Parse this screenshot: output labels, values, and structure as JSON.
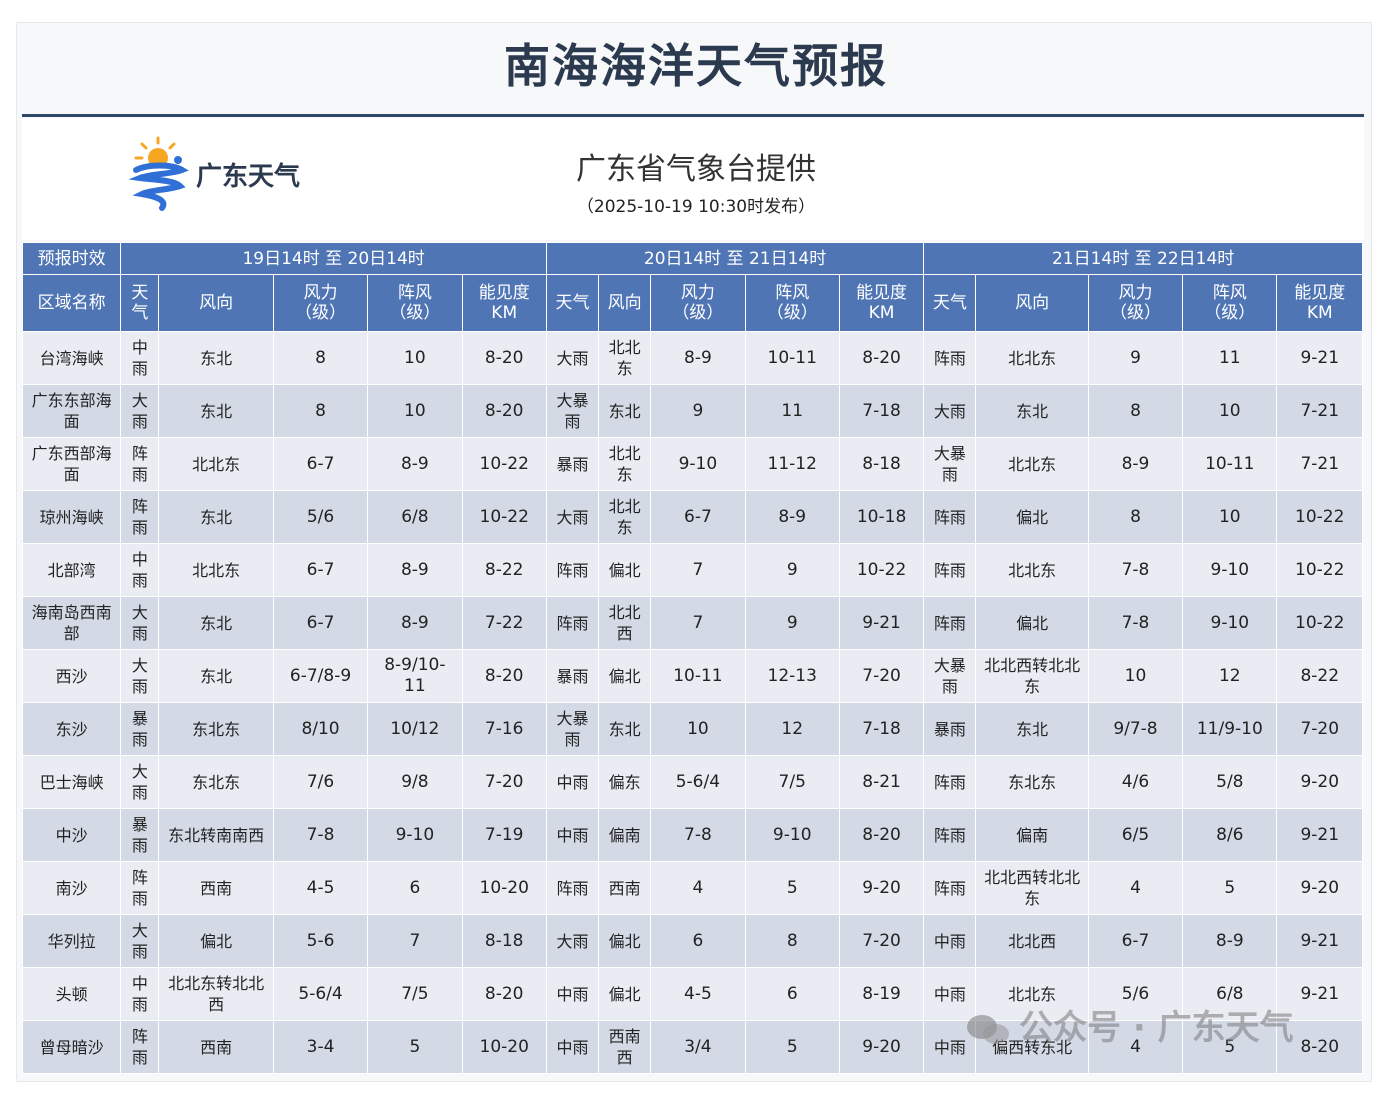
{
  "title": "南海海洋天气预报",
  "logo_text": "广东天气",
  "provider": "广东省气象台提供",
  "release": "（2025-10-19  10:30时发布）",
  "watermark": "公众号 · 广东天气",
  "table": {
    "period_label": "预报时效",
    "region_label": "区域名称",
    "periods": [
      "19日14时 至 20日14时",
      "20日14时 至 21日14时",
      "21日14时 至 22日14时"
    ],
    "columns": [
      "天气",
      "风向",
      "风力\n（级）",
      "阵风\n（级）",
      "能见度\nKM"
    ],
    "first_weather_header": "天\n气",
    "rows": [
      {
        "region": "台湾海峡",
        "p1": [
          "中\n雨",
          "东北",
          "8",
          "10",
          "8-20"
        ],
        "p2": [
          "大雨",
          "北北\n东",
          "8-9",
          "10-11",
          "8-20"
        ],
        "p3": [
          "阵雨",
          "北北东",
          "9",
          "11",
          "9-21"
        ]
      },
      {
        "region": "广东东部海\n面",
        "p1": [
          "大\n雨",
          "东北",
          "8",
          "10",
          "8-20"
        ],
        "p2": [
          "大暴\n雨",
          "东北",
          "9",
          "11",
          "7-18"
        ],
        "p3": [
          "大雨",
          "东北",
          "8",
          "10",
          "7-21"
        ]
      },
      {
        "region": "广东西部海\n面",
        "p1": [
          "阵\n雨",
          "北北东",
          "6-7",
          "8-9",
          "10-22"
        ],
        "p2": [
          "暴雨",
          "北北\n东",
          "9-10",
          "11-12",
          "8-18"
        ],
        "p3": [
          "大暴\n雨",
          "北北东",
          "8-9",
          "10-11",
          "7-21"
        ]
      },
      {
        "region": "琼州海峡",
        "p1": [
          "阵\n雨",
          "东北",
          "5/6",
          "6/8",
          "10-22"
        ],
        "p2": [
          "大雨",
          "北北\n东",
          "6-7",
          "8-9",
          "10-18"
        ],
        "p3": [
          "阵雨",
          "偏北",
          "8",
          "10",
          "10-22"
        ]
      },
      {
        "region": "北部湾",
        "p1": [
          "中\n雨",
          "北北东",
          "6-7",
          "8-9",
          "8-22"
        ],
        "p2": [
          "阵雨",
          "偏北",
          "7",
          "9",
          "10-22"
        ],
        "p3": [
          "阵雨",
          "北北东",
          "7-8",
          "9-10",
          "10-22"
        ]
      },
      {
        "region": "海南岛西南\n部",
        "p1": [
          "大\n雨",
          "东北",
          "6-7",
          "8-9",
          "7-22"
        ],
        "p2": [
          "阵雨",
          "北北\n西",
          "7",
          "9",
          "9-21"
        ],
        "p3": [
          "阵雨",
          "偏北",
          "7-8",
          "9-10",
          "10-22"
        ]
      },
      {
        "region": "西沙",
        "p1": [
          "大\n雨",
          "东北",
          "6-7/8-9",
          "8-9/10-\n11",
          "8-20"
        ],
        "p2": [
          "暴雨",
          "偏北",
          "10-11",
          "12-13",
          "7-20"
        ],
        "p3": [
          "大暴\n雨",
          "北北西转北北\n东",
          "10",
          "12",
          "8-22"
        ]
      },
      {
        "region": "东沙",
        "p1": [
          "暴\n雨",
          "东北东",
          "8/10",
          "10/12",
          "7-16"
        ],
        "p2": [
          "大暴\n雨",
          "东北",
          "10",
          "12",
          "7-18"
        ],
        "p3": [
          "暴雨",
          "东北",
          "9/7-8",
          "11/9-10",
          "7-20"
        ]
      },
      {
        "region": "巴士海峡",
        "p1": [
          "大\n雨",
          "东北东",
          "7/6",
          "9/8",
          "7-20"
        ],
        "p2": [
          "中雨",
          "偏东",
          "5-6/4",
          "7/5",
          "8-21"
        ],
        "p3": [
          "阵雨",
          "东北东",
          "4/6",
          "5/8",
          "9-20"
        ]
      },
      {
        "region": "中沙",
        "p1": [
          "暴\n雨",
          "东北转南南西",
          "7-8",
          "9-10",
          "7-19"
        ],
        "p2": [
          "中雨",
          "偏南",
          "7-8",
          "9-10",
          "8-20"
        ],
        "p3": [
          "阵雨",
          "偏南",
          "6/5",
          "8/6",
          "9-21"
        ]
      },
      {
        "region": "南沙",
        "p1": [
          "阵\n雨",
          "西南",
          "4-5",
          "6",
          "10-20"
        ],
        "p2": [
          "阵雨",
          "西南",
          "4",
          "5",
          "9-20"
        ],
        "p3": [
          "阵雨",
          "北北西转北北\n东",
          "4",
          "5",
          "9-20"
        ]
      },
      {
        "region": "华列拉",
        "p1": [
          "大\n雨",
          "偏北",
          "5-6",
          "7",
          "8-18"
        ],
        "p2": [
          "大雨",
          "偏北",
          "6",
          "8",
          "7-20"
        ],
        "p3": [
          "中雨",
          "北北西",
          "6-7",
          "8-9",
          "9-21"
        ]
      },
      {
        "region": "头顿",
        "p1": [
          "中\n雨",
          "北北东转北北\n西",
          "5-6/4",
          "7/5",
          "8-20"
        ],
        "p2": [
          "中雨",
          "偏北",
          "4-5",
          "6",
          "8-19"
        ],
        "p3": [
          "中雨",
          "北北东",
          "5/6",
          "6/8",
          "9-21"
        ]
      },
      {
        "region": "曾母暗沙",
        "p1": [
          "阵\n雨",
          "西南",
          "3-4",
          "5",
          "10-20"
        ],
        "p2": [
          "中雨",
          "西南\n西",
          "3/4",
          "5",
          "9-20"
        ],
        "p3": [
          "中雨",
          "偏西转东北",
          "4",
          "5",
          "8-20"
        ]
      }
    ]
  }
}
